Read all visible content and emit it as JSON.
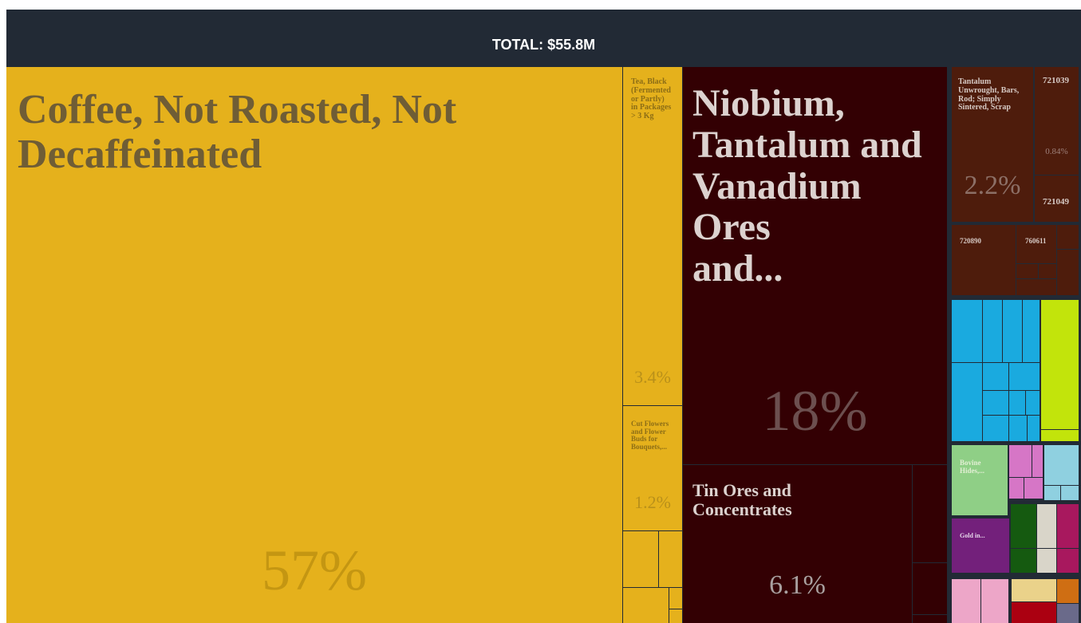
{
  "header": {
    "total_label": "TOTAL: $55.8M"
  },
  "colors": {
    "background": "#222a35",
    "yellow": "#e5b11c",
    "maroon": "#330003",
    "brown": "#4e1c0c",
    "blue": "#1aaadf",
    "lime": "#c2e40b"
  },
  "chart_data": {
    "type": "treemap",
    "title": "TOTAL: $55.8M",
    "items": [
      {
        "name": "Coffee, Not Roasted, Not Decaffeinated",
        "label": "Coffee, Not Roasted, Not\nDecaffeinated",
        "share_pct": 57,
        "pct_label": "57%",
        "group": "yellow"
      },
      {
        "name": "Tea, Black (Fermented or Partly) in Packages > 3 Kg",
        "label": "Tea, Black\n(Fermented\nor Partly)\nin Packages\n> 3 Kg",
        "share_pct": 3.4,
        "pct_label": "3.4%",
        "group": "yellow"
      },
      {
        "name": "Cut Flowers and Flower Buds for Bouquets,...",
        "label": "Cut Flowers\nand Flower\nBuds for\nBouquets,...",
        "share_pct": 1.2,
        "pct_label": "1.2%",
        "group": "yellow"
      },
      {
        "name": "Niobium, Tantalum and Vanadium Ores and...",
        "label": "Niobium,\nTantalum and\nVanadium Ores\n and...",
        "share_pct": 18,
        "pct_label": "18%",
        "group": "maroon"
      },
      {
        "name": "Tin Ores and Concentrates",
        "label": "Tin Ores and\nConcentrates",
        "share_pct": 6.1,
        "pct_label": "6.1%",
        "group": "maroon"
      },
      {
        "name": "Tantalum Unwrought, Bars, Rod; Simply Sintered, Scrap",
        "label": "Tantalum\nUnwrought, Bars,\nRod; Simply\nSintered, Scrap",
        "share_pct": 2.2,
        "pct_label": "2.2%",
        "group": "brown"
      },
      {
        "name": "721039",
        "label": "721039",
        "share_pct": 0.84,
        "pct_label": "0.84%",
        "group": "brown"
      },
      {
        "name": "721049",
        "label": "721049",
        "group": "brown"
      },
      {
        "name": "720890",
        "label": "720890",
        "group": "brown"
      },
      {
        "name": "760611",
        "label": "760611",
        "group": "brown"
      },
      {
        "name": "Bovine Hides,...",
        "label": "Bovine\nHides,...",
        "group": "green"
      },
      {
        "name": "Gold in...",
        "label": "Gold in...",
        "group": "purple"
      }
    ]
  }
}
